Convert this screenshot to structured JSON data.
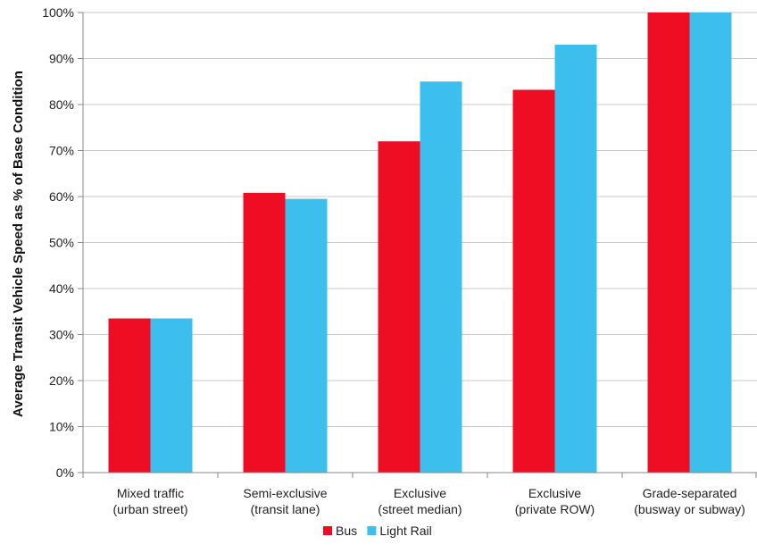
{
  "chart_data": {
    "type": "bar",
    "title": "",
    "xlabel": "",
    "ylabel": "Average Transit Vehicle Speed as % of Base Condition",
    "ylim": [
      0,
      100
    ],
    "yticks": [
      "0%",
      "10%",
      "20%",
      "30%",
      "40%",
      "50%",
      "60%",
      "70%",
      "80%",
      "90%",
      "100%"
    ],
    "categories": [
      [
        "Mixed traffic",
        "(urban street)"
      ],
      [
        "Semi-exclusive",
        "(transit lane)"
      ],
      [
        "Exclusive",
        "(street median)"
      ],
      [
        "Exclusive",
        "(private ROW)"
      ],
      [
        "Grade-separated",
        "(busway or subway)"
      ]
    ],
    "series": [
      {
        "name": "Bus",
        "color": "#ee0d23",
        "values": [
          33.5,
          60.8,
          72.0,
          83.2,
          100
        ]
      },
      {
        "name": "Light Rail",
        "color": "#3dbfee",
        "values": [
          33.5,
          59.5,
          85.0,
          93.0,
          100
        ]
      }
    ],
    "grid": true,
    "legend": "bottom-center"
  }
}
